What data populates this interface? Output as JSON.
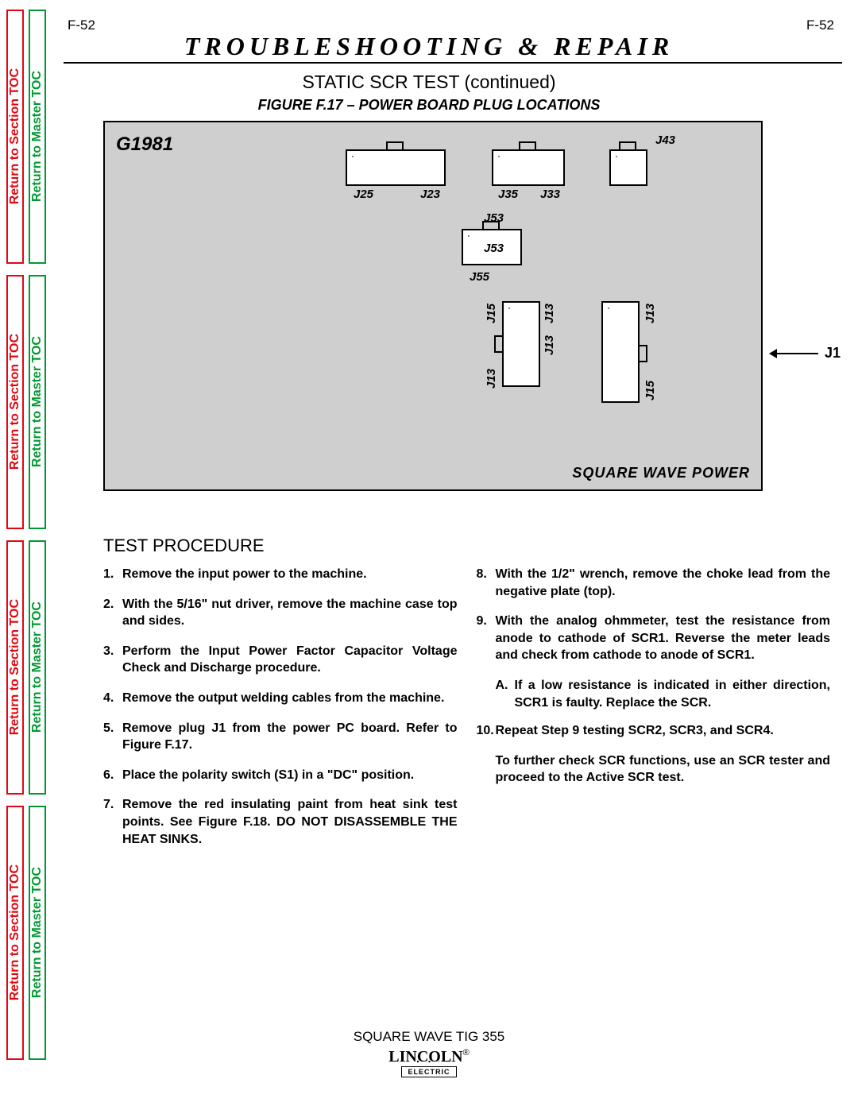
{
  "page_number": "F-52",
  "colors": {
    "section_toc": "#e30613",
    "master_toc": "#009933",
    "figure_bg": "#cfcfcf",
    "grid_cell_border": "#888888"
  },
  "section_title": "TROUBLESHOOTING & REPAIR",
  "subtitle": "STATIC SCR TEST (continued)",
  "figure_caption": "FIGURE F.17 – POWER BOARD PLUG LOCATIONS",
  "toc_section_label": "Return to Section TOC",
  "toc_master_label": "Return to Master TOC",
  "board_label": "G1981",
  "figure_brand": "SQUARE WAVE POWER",
  "j1_label": "J1",
  "connectors": {
    "j2": {
      "cols": 6,
      "rows": 2,
      "label": "J2",
      "left": "J25",
      "right": "J23"
    },
    "j3": {
      "cols": 4,
      "rows": 2,
      "label": "J3",
      "left": "J35",
      "right": "J33"
    },
    "j4": {
      "cols": 2,
      "rows": 2,
      "label": "J4",
      "tr": "J43"
    },
    "j5": {
      "cols": 3,
      "rows": 2,
      "label": "J5",
      "top": "J53",
      "bot_left": "J55",
      "tr": "J53"
    },
    "j1a": {
      "cols": 2,
      "rows": 5,
      "top_left": "J15",
      "top_right": "J13",
      "bot": "J13",
      "center": "J13"
    },
    "j1b": {
      "cols": 2,
      "rows": 6,
      "top_right": "J13",
      "bot_right": "J15"
    }
  },
  "proc_title": "TEST PROCEDURE",
  "left_steps": [
    {
      "n": "1.",
      "t": "Remove the input power to the machine."
    },
    {
      "n": "2.",
      "t": "With the 5/16\" nut driver, remove the machine case top and sides."
    },
    {
      "n": "3.",
      "t": "Perform the Input Power Factor Capacitor Voltage Check and Discharge procedure."
    },
    {
      "n": "4.",
      "t": "Remove the output welding cables from the machine."
    },
    {
      "n": "5.",
      "t": "Remove plug J1 from the power PC board. Refer to Figure F.17."
    },
    {
      "n": "6.",
      "t": "Place the polarity switch (S1) in a \"DC\" position."
    },
    {
      "n": "7.",
      "t": "Remove the red insulating paint from heat sink test points. See Figure F.18. DO NOT DISASSEMBLE THE HEAT SINKS."
    }
  ],
  "right_steps": [
    {
      "n": "8.",
      "t": "With the 1/2\" wrench, remove the choke lead from the negative plate (top)."
    },
    {
      "n": "9.",
      "t": "With the analog ohmmeter, test the resistance from anode to cathode of SCR1. Reverse the meter leads and check from cathode to anode of SCR1."
    }
  ],
  "right_substep": {
    "n": "A.",
    "t": "If a low resistance is indicated in either direction, SCR1 is faulty.  Replace the SCR."
  },
  "right_step10": {
    "n": "10.",
    "t": "Repeat Step 9 testing SCR2, SCR3, and SCR4."
  },
  "right_note": "To further check SCR functions, use an SCR tester and proceed to the Active SCR test.",
  "footer_model": "SQUARE WAVE TIG 355",
  "footer_brand": "LINCOLN",
  "footer_electric": "ELECTRIC"
}
